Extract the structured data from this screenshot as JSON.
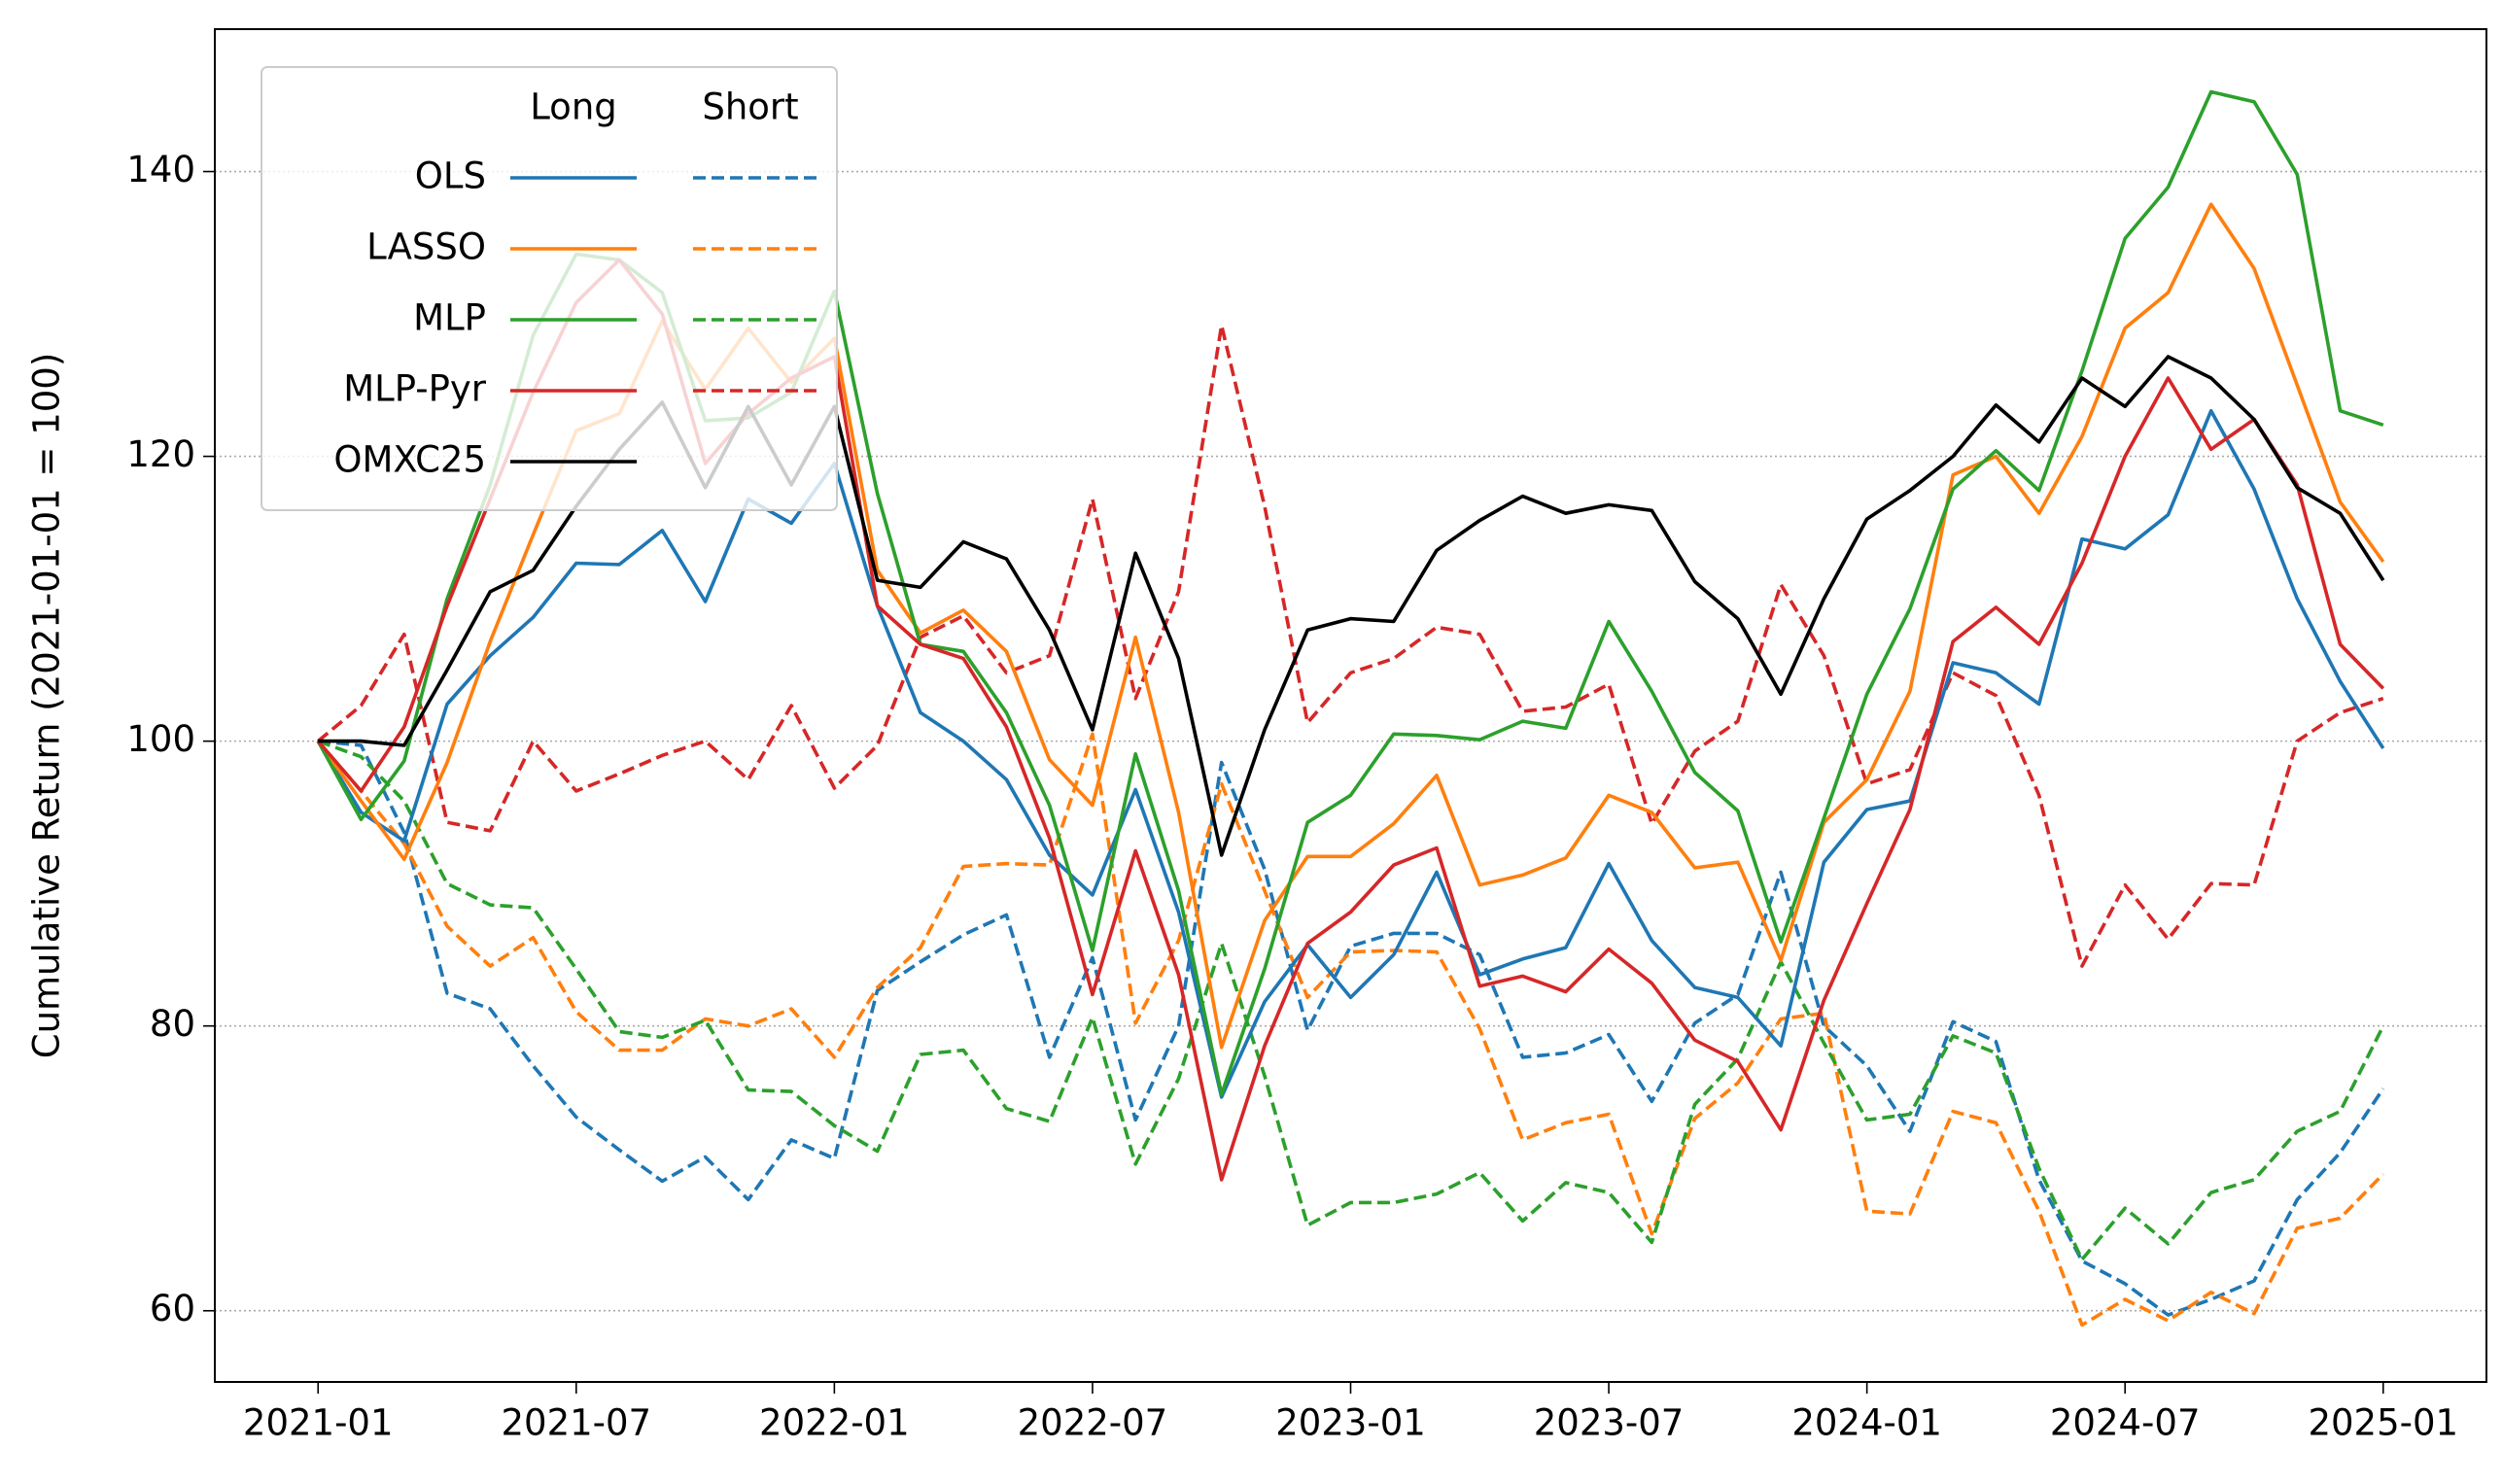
{
  "chart_data": {
    "type": "line",
    "ylabel": "Cumulative Return (2021-01-01 = 100)",
    "x": [
      "2021-01",
      "2021-02",
      "2021-03",
      "2021-04",
      "2021-05",
      "2021-06",
      "2021-07",
      "2021-08",
      "2021-09",
      "2021-10",
      "2021-11",
      "2021-12",
      "2022-01",
      "2022-02",
      "2022-03",
      "2022-04",
      "2022-05",
      "2022-06",
      "2022-07",
      "2022-08",
      "2022-09",
      "2022-10",
      "2022-11",
      "2022-12",
      "2023-01",
      "2023-02",
      "2023-03",
      "2023-04",
      "2023-05",
      "2023-06",
      "2023-07",
      "2023-08",
      "2023-09",
      "2023-10",
      "2023-11",
      "2023-12",
      "2024-01",
      "2024-02",
      "2024-03",
      "2024-04",
      "2024-05",
      "2024-06",
      "2024-07",
      "2024-08",
      "2024-09",
      "2024-10",
      "2024-11",
      "2024-12",
      "2025-01"
    ],
    "xticks": [
      "2021-01",
      "2021-07",
      "2022-01",
      "2022-07",
      "2023-01",
      "2023-07",
      "2024-01",
      "2024-07",
      "2025-01"
    ],
    "ylim": [
      55,
      150
    ],
    "yticks": [
      60,
      80,
      100,
      120,
      140
    ],
    "grid": true,
    "legend": {
      "loc": "upper left",
      "columns": [
        "Long",
        "Short"
      ]
    },
    "series": [
      {
        "name": "OLS",
        "color": "#1f77b4",
        "values": [
          100,
          95,
          93,
          102.6,
          106,
          108.7,
          112.5,
          112.4,
          114.8,
          109.8,
          117,
          115.3,
          119.5,
          109.5,
          102,
          100,
          97.3,
          92,
          89.2,
          96.6,
          88,
          75,
          81.7,
          85.7,
          82,
          85,
          90.8,
          83.6,
          84.7,
          85.5,
          91.4,
          86,
          82.7,
          82,
          78.6,
          91.5,
          95.2,
          95.8,
          105.5,
          104.8,
          102.6,
          114.2,
          113.5,
          115.9,
          123.2,
          117.7,
          110,
          104.2,
          99.5
        ],
        "short_values": [
          100,
          99.7,
          93.6,
          82.3,
          81.2,
          77.2,
          73.6,
          71.3,
          69.1,
          70.8,
          67.8,
          72,
          70.7,
          82.5,
          84.5,
          86.4,
          87.8,
          77.8,
          84.8,
          73.4,
          80,
          98.5,
          91,
          79.7,
          85.6,
          86.5,
          86.5,
          85,
          77.8,
          78.1,
          79.4,
          74.7,
          80.2,
          82.2,
          90.8,
          80,
          77.2,
          72.6,
          80.3,
          78.9,
          69.2,
          63.5,
          61.9,
          59.7,
          60.8,
          62.1,
          67.8,
          71.1,
          75.6
        ]
      },
      {
        "name": "LASSO",
        "color": "#ff7f0e",
        "values": [
          100,
          95.8,
          91.7,
          98.5,
          107,
          114.5,
          121.8,
          123,
          129.5,
          124.7,
          129,
          125.2,
          128.3,
          112,
          107.6,
          109.2,
          106.3,
          98.7,
          95.5,
          107.3,
          95,
          78.5,
          87.4,
          91.9,
          91.9,
          94.2,
          97.6,
          89.9,
          90.6,
          91.8,
          96.2,
          95,
          91.1,
          91.5,
          84.6,
          94.3,
          97.3,
          103.5,
          118.7,
          120,
          116,
          121.4,
          129,
          131.5,
          137.7,
          133.2,
          125,
          116.8,
          112.6
        ],
        "short_values": [
          100,
          96.5,
          92.8,
          87,
          84.2,
          86.2,
          81,
          78.3,
          78.3,
          80.5,
          80,
          81.2,
          77.8,
          82.7,
          85.5,
          91.2,
          91.4,
          91.3,
          100.5,
          80.2,
          86,
          97,
          89.5,
          82,
          85.2,
          85.3,
          85.2,
          79.8,
          72,
          73.2,
          73.8,
          65.4,
          73.5,
          76,
          80.5,
          80.9,
          67,
          66.8,
          74,
          73.2,
          67,
          59,
          60.8,
          59.3,
          61.3,
          59.8,
          65.8,
          66.5,
          69.6
        ]
      },
      {
        "name": "MLP",
        "color": "#2ca02c",
        "values": [
          100,
          94.5,
          98.6,
          110,
          118,
          128.5,
          134.2,
          133.8,
          131.5,
          122.5,
          122.7,
          124.5,
          131.6,
          117.4,
          106.8,
          106.3,
          102,
          95.5,
          85.3,
          99.1,
          89.5,
          75.2,
          84,
          94.3,
          96.2,
          100.5,
          100.4,
          100.1,
          101.4,
          100.9,
          108.4,
          103.5,
          97.8,
          95.1,
          85.9,
          94.6,
          103.3,
          109.3,
          117.7,
          120.4,
          117.6,
          126,
          135.3,
          138.9,
          145.6,
          144.9,
          139.8,
          123.2,
          122.2
        ],
        "short_values": [
          100,
          98.9,
          95.8,
          90,
          88.5,
          88.3,
          84,
          79.6,
          79.2,
          80.4,
          75.5,
          75.4,
          73,
          71.2,
          78,
          78.3,
          74.2,
          73.3,
          80.6,
          70.3,
          76.3,
          85.8,
          76.5,
          66,
          67.6,
          67.6,
          68.2,
          69.7,
          66.3,
          69,
          68.3,
          64.8,
          74.5,
          77.7,
          84.5,
          78.8,
          73.4,
          73.8,
          79.3,
          78.1,
          70,
          63.6,
          67.2,
          64.7,
          68.3,
          69.2,
          72.6,
          74,
          80
        ]
      },
      {
        "name": "MLP-Pyr",
        "color": "#d62728",
        "values": [
          100,
          96.5,
          101,
          109.5,
          117,
          124.5,
          130.8,
          133.8,
          130,
          119.5,
          123,
          125.5,
          127,
          109.5,
          106.8,
          105.8,
          101,
          93.2,
          82.2,
          92.3,
          83.6,
          69.2,
          78.6,
          85.8,
          88,
          91.3,
          92.5,
          82.8,
          83.5,
          82.4,
          85.4,
          83,
          79,
          77.5,
          72.7,
          81.8,
          88.6,
          95.2,
          107,
          109.4,
          106.8,
          112.5,
          120,
          125.5,
          120.5,
          122.6,
          118,
          106.8,
          103.7
        ],
        "short_values": [
          100,
          102.5,
          107.5,
          94.3,
          93.7,
          100,
          96.5,
          97.7,
          99,
          100,
          97.3,
          102.5,
          96.7,
          99.7,
          107.3,
          108.8,
          104.8,
          106,
          117,
          103,
          110.5,
          129.2,
          116.5,
          101.3,
          104.8,
          105.8,
          108,
          107.5,
          102.1,
          102.4,
          104,
          94.2,
          99.3,
          101.4,
          111,
          106,
          97,
          98,
          104.8,
          103.2,
          96.2,
          84.2,
          89.9,
          86.1,
          90,
          89.9,
          100,
          102,
          103
        ]
      },
      {
        "name": "OMXC25",
        "color": "#000000",
        "values": [
          100,
          100,
          99.7,
          105,
          110.5,
          112,
          116.5,
          120.5,
          123.8,
          117.8,
          123.5,
          118,
          123.5,
          111.3,
          110.8,
          114,
          112.8,
          107.8,
          100.8,
          113.2,
          105.8,
          92,
          100.8,
          107.8,
          108.6,
          108.4,
          113.4,
          115.5,
          117.2,
          116,
          116.6,
          116.2,
          111.2,
          108.6,
          103.3,
          110,
          115.6,
          117.6,
          120,
          123.6,
          121,
          125.5,
          123.5,
          127,
          125.5,
          122.6,
          117.8,
          116,
          111.3
        ]
      }
    ]
  }
}
